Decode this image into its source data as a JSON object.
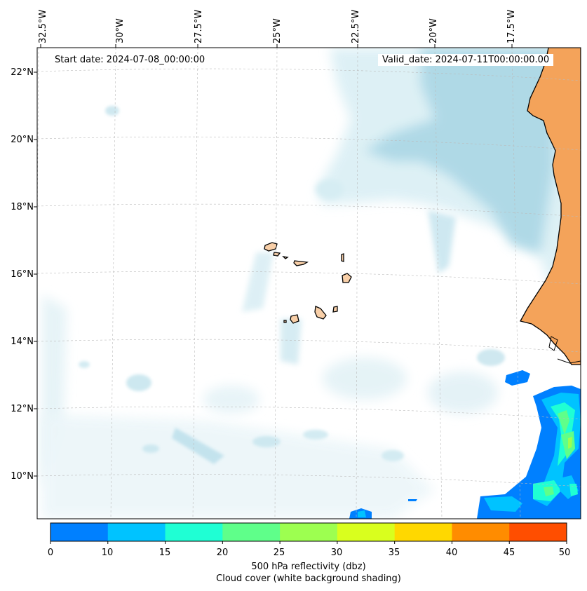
{
  "map": {
    "start_date": "Start date: 2024-07-08_00:00:00",
    "valid_date": "Valid_date: 2024-07-11T00:00:00.00",
    "lon_labels": [
      "32.5°W",
      "30°W",
      "27.5°W",
      "25°W",
      "22.5°W",
      "20°W",
      "17.5°W"
    ],
    "lat_labels": [
      "22°N",
      "20°N",
      "18°N",
      "16°N",
      "14°N",
      "12°N",
      "10°N"
    ],
    "colorbar_ticks": [
      "0",
      "10",
      "15",
      "20",
      "25",
      "30",
      "35",
      "40",
      "45",
      "50"
    ],
    "colorbar_colors": [
      "#0080ff",
      "#00c3ff",
      "#1fffd4",
      "#5fff8a",
      "#9dff50",
      "#d9ff1e",
      "#ffd800",
      "#ff8c00",
      "#ff4e00"
    ],
    "colorbar_label": "500 hPa reflectivity (dbz)",
    "cloud_label": "Cloud cover (white background shading)",
    "land_color": "#f4a35a",
    "island_color": "#f8cfa8",
    "cloud_color": "#add8e6"
  }
}
